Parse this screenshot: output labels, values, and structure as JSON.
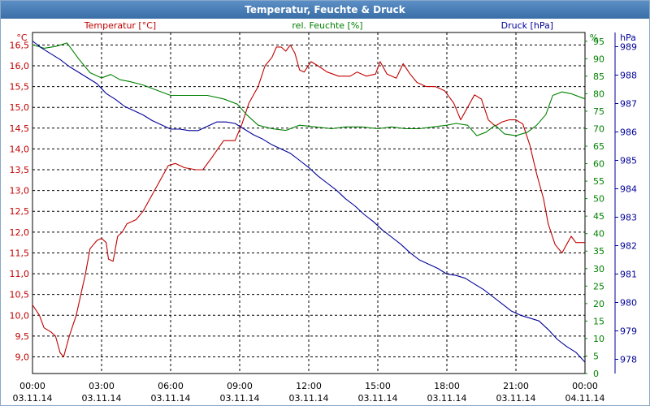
{
  "window": {
    "title": "Temperatur, Feuchte & Druck"
  },
  "colors": {
    "temperature": "#c00000",
    "humidity": "#008000",
    "pressure": "#000099",
    "grid": "#000000",
    "title_bg": "#3a6ea6"
  },
  "chart_data": {
    "type": "line",
    "title": "Temperatur, Feuchte & Druck",
    "legend": [
      "Temperatur [°C]",
      "rel. Feuchte [%]",
      "Druck [hPa]"
    ],
    "x_tick_times": [
      "00:00",
      "03:00",
      "06:00",
      "09:00",
      "12:00",
      "15:00",
      "18:00",
      "21:00",
      "00:00"
    ],
    "x_tick_dates": [
      "03.11.14",
      "03.11.14",
      "03.11.14",
      "03.11.14",
      "03.11.14",
      "03.11.14",
      "03.11.14",
      "03.11.14",
      "04.11.14"
    ],
    "xlim": [
      0,
      24
    ],
    "axes": {
      "temperature": {
        "unit": "°C",
        "label": "Temperatur [°C]",
        "ylim": [
          8.6,
          16.8
        ],
        "ticks": [
          "9,0",
          "9,5",
          "10,0",
          "10,5",
          "11,0",
          "11,5",
          "12,0",
          "12,5",
          "13,0",
          "13,5",
          "14,0",
          "14,5",
          "15,0",
          "15,5",
          "16,0",
          "16,5"
        ]
      },
      "humidity": {
        "unit": "%",
        "label": "rel. Feuchte [%]",
        "ylim": [
          0,
          97.5
        ],
        "ticks": [
          "0",
          "5",
          "10",
          "15",
          "20",
          "25",
          "30",
          "35",
          "40",
          "45",
          "50",
          "55",
          "60",
          "65",
          "70",
          "75",
          "80",
          "85",
          "90",
          "95"
        ]
      },
      "pressure": {
        "unit": "hPa",
        "label": "Druck [hPa]",
        "ylim": [
          977.5,
          989.5
        ],
        "ticks": [
          "978",
          "979",
          "980",
          "981",
          "982",
          "983",
          "984",
          "985",
          "986",
          "987",
          "988",
          "989"
        ]
      }
    },
    "series": [
      {
        "name": "Temperatur [°C]",
        "axis": "temperature",
        "points": [
          [
            0,
            10.25
          ],
          [
            0.3,
            10.0
          ],
          [
            0.5,
            9.7
          ],
          [
            0.8,
            9.6
          ],
          [
            1.0,
            9.5
          ],
          [
            1.2,
            9.1
          ],
          [
            1.35,
            9.0
          ],
          [
            1.6,
            9.5
          ],
          [
            1.9,
            10.0
          ],
          [
            2.1,
            10.5
          ],
          [
            2.3,
            11.0
          ],
          [
            2.5,
            11.6
          ],
          [
            2.8,
            11.8
          ],
          [
            3.0,
            11.85
          ],
          [
            3.2,
            11.75
          ],
          [
            3.3,
            11.35
          ],
          [
            3.5,
            11.3
          ],
          [
            3.7,
            11.9
          ],
          [
            3.9,
            12.0
          ],
          [
            4.1,
            12.2
          ],
          [
            4.5,
            12.3
          ],
          [
            4.8,
            12.5
          ],
          [
            5.1,
            12.8
          ],
          [
            5.5,
            13.2
          ],
          [
            5.9,
            13.6
          ],
          [
            6.2,
            13.65
          ],
          [
            6.6,
            13.55
          ],
          [
            7.1,
            13.5
          ],
          [
            7.4,
            13.5
          ],
          [
            7.8,
            13.8
          ],
          [
            8.3,
            14.2
          ],
          [
            8.8,
            14.2
          ],
          [
            9.1,
            14.6
          ],
          [
            9.4,
            15.1
          ],
          [
            9.8,
            15.5
          ],
          [
            10.1,
            16.0
          ],
          [
            10.4,
            16.2
          ],
          [
            10.6,
            16.45
          ],
          [
            10.8,
            16.45
          ],
          [
            11.0,
            16.35
          ],
          [
            11.2,
            16.5
          ],
          [
            11.4,
            16.3
          ],
          [
            11.6,
            15.9
          ],
          [
            11.8,
            15.85
          ],
          [
            12.1,
            16.1
          ],
          [
            12.4,
            16.0
          ],
          [
            12.8,
            15.85
          ],
          [
            13.3,
            15.75
          ],
          [
            13.8,
            15.75
          ],
          [
            14.1,
            15.85
          ],
          [
            14.5,
            15.75
          ],
          [
            14.9,
            15.8
          ],
          [
            15.1,
            16.1
          ],
          [
            15.4,
            15.8
          ],
          [
            15.8,
            15.7
          ],
          [
            16.1,
            16.05
          ],
          [
            16.4,
            15.8
          ],
          [
            16.7,
            15.6
          ],
          [
            17.1,
            15.5
          ],
          [
            17.5,
            15.5
          ],
          [
            17.9,
            15.4
          ],
          [
            18.3,
            15.1
          ],
          [
            18.6,
            14.7
          ],
          [
            18.9,
            15.0
          ],
          [
            19.2,
            15.3
          ],
          [
            19.5,
            15.2
          ],
          [
            19.8,
            14.7
          ],
          [
            20.1,
            14.55
          ],
          [
            20.4,
            14.65
          ],
          [
            20.7,
            14.7
          ],
          [
            21.0,
            14.7
          ],
          [
            21.3,
            14.6
          ],
          [
            21.6,
            14.1
          ],
          [
            21.9,
            13.4
          ],
          [
            22.2,
            12.8
          ],
          [
            22.4,
            12.2
          ],
          [
            22.7,
            11.7
          ],
          [
            23.0,
            11.5
          ],
          [
            23.2,
            11.7
          ],
          [
            23.4,
            11.9
          ],
          [
            23.6,
            11.75
          ],
          [
            23.8,
            11.75
          ],
          [
            24.0,
            11.75
          ]
        ]
      },
      {
        "name": "rel. Feuchte [%]",
        "axis": "humidity",
        "points": [
          [
            0,
            94
          ],
          [
            0.5,
            93
          ],
          [
            1.0,
            93.5
          ],
          [
            1.5,
            94.5
          ],
          [
            2.0,
            90
          ],
          [
            2.5,
            86
          ],
          [
            3.0,
            84.5
          ],
          [
            3.4,
            85.5
          ],
          [
            3.8,
            84
          ],
          [
            4.2,
            83.5
          ],
          [
            4.8,
            82.5
          ],
          [
            5.4,
            81
          ],
          [
            6.0,
            79.5
          ],
          [
            6.8,
            79.5
          ],
          [
            7.6,
            79.5
          ],
          [
            8.3,
            78.5
          ],
          [
            8.9,
            77
          ],
          [
            9.3,
            74
          ],
          [
            9.8,
            71
          ],
          [
            10.4,
            70
          ],
          [
            11.0,
            69.5
          ],
          [
            11.6,
            71
          ],
          [
            12.3,
            70.5
          ],
          [
            13.0,
            70
          ],
          [
            13.6,
            70.5
          ],
          [
            14.3,
            70.5
          ],
          [
            15.0,
            70
          ],
          [
            15.6,
            70.5
          ],
          [
            16.2,
            70
          ],
          [
            16.8,
            70
          ],
          [
            17.4,
            70.5
          ],
          [
            18.0,
            71
          ],
          [
            18.4,
            71.5
          ],
          [
            18.9,
            71
          ],
          [
            19.3,
            68
          ],
          [
            19.7,
            69
          ],
          [
            20.1,
            71
          ],
          [
            20.5,
            68.5
          ],
          [
            21.0,
            68
          ],
          [
            21.5,
            69
          ],
          [
            21.9,
            71
          ],
          [
            22.3,
            74
          ],
          [
            22.6,
            79.5
          ],
          [
            23.0,
            80.5
          ],
          [
            23.4,
            80
          ],
          [
            23.8,
            79
          ],
          [
            24.0,
            78.5
          ]
        ]
      },
      {
        "name": "Druck [hPa]",
        "axis": "pressure",
        "points": [
          [
            0,
            989.2
          ],
          [
            0.4,
            988.95
          ],
          [
            0.8,
            988.75
          ],
          [
            1.2,
            988.55
          ],
          [
            1.6,
            988.3
          ],
          [
            2.0,
            988.1
          ],
          [
            2.4,
            987.9
          ],
          [
            2.8,
            987.7
          ],
          [
            3.2,
            987.35
          ],
          [
            3.6,
            987.15
          ],
          [
            4.0,
            986.9
          ],
          [
            4.4,
            986.75
          ],
          [
            4.8,
            986.6
          ],
          [
            5.2,
            986.4
          ],
          [
            5.6,
            986.25
          ],
          [
            6.0,
            986.1
          ],
          [
            6.4,
            986.1
          ],
          [
            6.8,
            986.05
          ],
          [
            7.2,
            986.05
          ],
          [
            7.6,
            986.2
          ],
          [
            8.0,
            986.35
          ],
          [
            8.4,
            986.35
          ],
          [
            8.8,
            986.3
          ],
          [
            9.2,
            986.1
          ],
          [
            9.6,
            985.9
          ],
          [
            10.0,
            985.75
          ],
          [
            10.4,
            985.55
          ],
          [
            10.8,
            985.4
          ],
          [
            11.2,
            985.25
          ],
          [
            11.6,
            985.0
          ],
          [
            12.0,
            984.75
          ],
          [
            12.4,
            984.45
          ],
          [
            12.8,
            984.2
          ],
          [
            13.2,
            983.95
          ],
          [
            13.6,
            983.65
          ],
          [
            14.0,
            983.4
          ],
          [
            14.4,
            983.1
          ],
          [
            14.8,
            982.85
          ],
          [
            15.2,
            982.55
          ],
          [
            15.6,
            982.3
          ],
          [
            16.0,
            982.05
          ],
          [
            16.4,
            981.75
          ],
          [
            16.8,
            981.5
          ],
          [
            17.2,
            981.35
          ],
          [
            17.6,
            981.2
          ],
          [
            18.0,
            981.0
          ],
          [
            18.4,
            980.95
          ],
          [
            18.8,
            980.85
          ],
          [
            19.2,
            980.65
          ],
          [
            19.6,
            980.45
          ],
          [
            20.0,
            980.2
          ],
          [
            20.4,
            979.95
          ],
          [
            20.8,
            979.7
          ],
          [
            21.2,
            979.55
          ],
          [
            21.6,
            979.45
          ],
          [
            22.0,
            979.35
          ],
          [
            22.4,
            979.05
          ],
          [
            22.8,
            978.7
          ],
          [
            23.2,
            978.45
          ],
          [
            23.6,
            978.25
          ],
          [
            24.0,
            977.9
          ]
        ]
      }
    ]
  }
}
